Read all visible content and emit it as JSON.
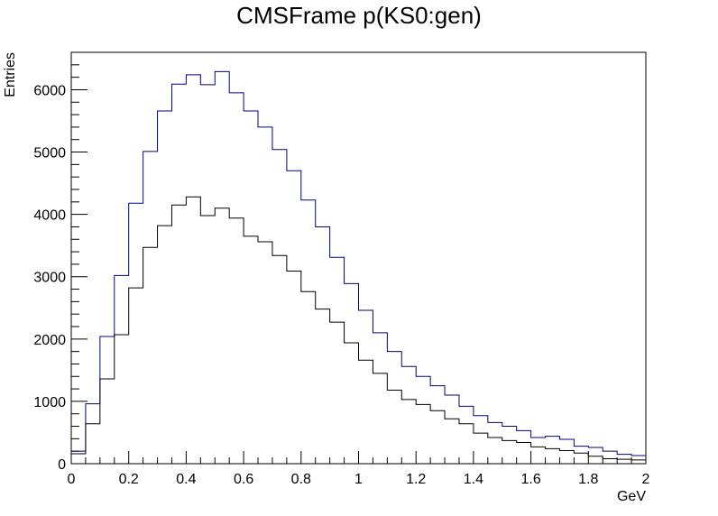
{
  "chart_data": {
    "type": "histogram",
    "title": "CMSFrame p(KS0:gen)",
    "xlabel": "GeV",
    "ylabel": "Entries",
    "xlim": [
      0,
      2
    ],
    "ylim": [
      0,
      6600
    ],
    "bin_width": 0.05,
    "x_ticks": [
      "0",
      "0.2",
      "0.4",
      "0.6",
      "0.8",
      "1",
      "1.2",
      "1.4",
      "1.6",
      "1.8",
      "2"
    ],
    "y_ticks": [
      "0",
      "1000",
      "2000",
      "3000",
      "4000",
      "5000",
      "6000"
    ],
    "grid": false,
    "legend": "none",
    "series": [
      {
        "color": "#00007f",
        "values": [
          200,
          960,
          2040,
          3020,
          4180,
          5010,
          5660,
          6090,
          6240,
          6080,
          6290,
          5950,
          5660,
          5400,
          5040,
          4700,
          4230,
          3800,
          3310,
          2890,
          2460,
          2100,
          1800,
          1560,
          1400,
          1250,
          1100,
          920,
          770,
          660,
          600,
          530,
          420,
          440,
          390,
          280,
          260,
          200,
          150,
          130
        ]
      },
      {
        "color": "#000000",
        "values": [
          160,
          640,
          1360,
          2070,
          2820,
          3470,
          3820,
          4150,
          4280,
          3980,
          4100,
          3940,
          3650,
          3560,
          3340,
          3090,
          2760,
          2480,
          2270,
          1940,
          1660,
          1450,
          1180,
          1030,
          950,
          850,
          720,
          640,
          490,
          420,
          370,
          340,
          270,
          240,
          210,
          170,
          120,
          80,
          70,
          60
        ]
      }
    ]
  }
}
